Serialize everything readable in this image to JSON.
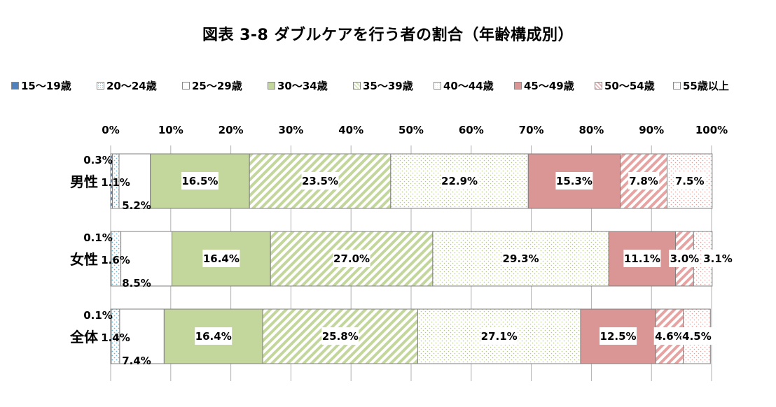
{
  "chart_data": {
    "type": "stacked-bar-horizontal",
    "title": "図表 3-8 ダブルケアを行う者の割合（年齢構成別）",
    "xlim": [
      0,
      100
    ],
    "x_ticks": [
      "0%",
      "10%",
      "20%",
      "30%",
      "40%",
      "50%",
      "60%",
      "70%",
      "80%",
      "90%",
      "100%"
    ],
    "categories": [
      "男性",
      "女性",
      "全体"
    ],
    "series": [
      {
        "name": "15〜19歳",
        "color": "#4f81bd",
        "pattern": "solid-blue",
        "values": [
          0.3,
          0.1,
          0.1
        ],
        "labels": [
          "0.3%",
          "0.1%",
          "0.1%"
        ]
      },
      {
        "name": "20〜24歳",
        "color": "#93cddd",
        "pattern": "dots-blue",
        "values": [
          1.1,
          1.6,
          1.4
        ],
        "labels": [
          "1.1%",
          "1.6%",
          "1.4%"
        ]
      },
      {
        "name": "25〜29歳",
        "color": "#ffffff",
        "pattern": "blank",
        "values": [
          5.2,
          8.5,
          7.4
        ],
        "labels": [
          "5.2%",
          "8.5%",
          "7.4%"
        ]
      },
      {
        "name": "30〜34歳",
        "color": "#c3d69b",
        "pattern": "solid-green",
        "values": [
          16.5,
          16.4,
          16.4
        ],
        "labels": [
          "16.5%",
          "16.4%",
          "16.4%"
        ]
      },
      {
        "name": "35〜39歳",
        "color": "#d7e4bd",
        "pattern": "stripes-green",
        "values": [
          23.5,
          27.0,
          25.8
        ],
        "labels": [
          "23.5%",
          "27.0%",
          "25.8%"
        ]
      },
      {
        "name": "40〜44歳",
        "color": "#ebf1de",
        "pattern": "dots-green",
        "values": [
          22.9,
          29.3,
          27.1
        ],
        "labels": [
          "22.9%",
          "29.3%",
          "27.1%"
        ]
      },
      {
        "name": "45〜49歳",
        "color": "#d99694",
        "pattern": "solid-red",
        "values": [
          15.3,
          11.1,
          12.5
        ],
        "labels": [
          "15.3%",
          "11.1%",
          "12.5%"
        ]
      },
      {
        "name": "50〜54歳",
        "color": "#e6b9b8",
        "pattern": "stripes-red",
        "values": [
          7.8,
          3.0,
          4.6
        ],
        "labels": [
          "7.8%",
          "3.0%",
          "4.6%"
        ]
      },
      {
        "name": "55歳以上",
        "color": "#f2dcdb",
        "pattern": "dots-red",
        "values": [
          7.5,
          3.1,
          4.5
        ],
        "labels": [
          "7.5%",
          "3.1%",
          "4.5%"
        ]
      }
    ]
  }
}
